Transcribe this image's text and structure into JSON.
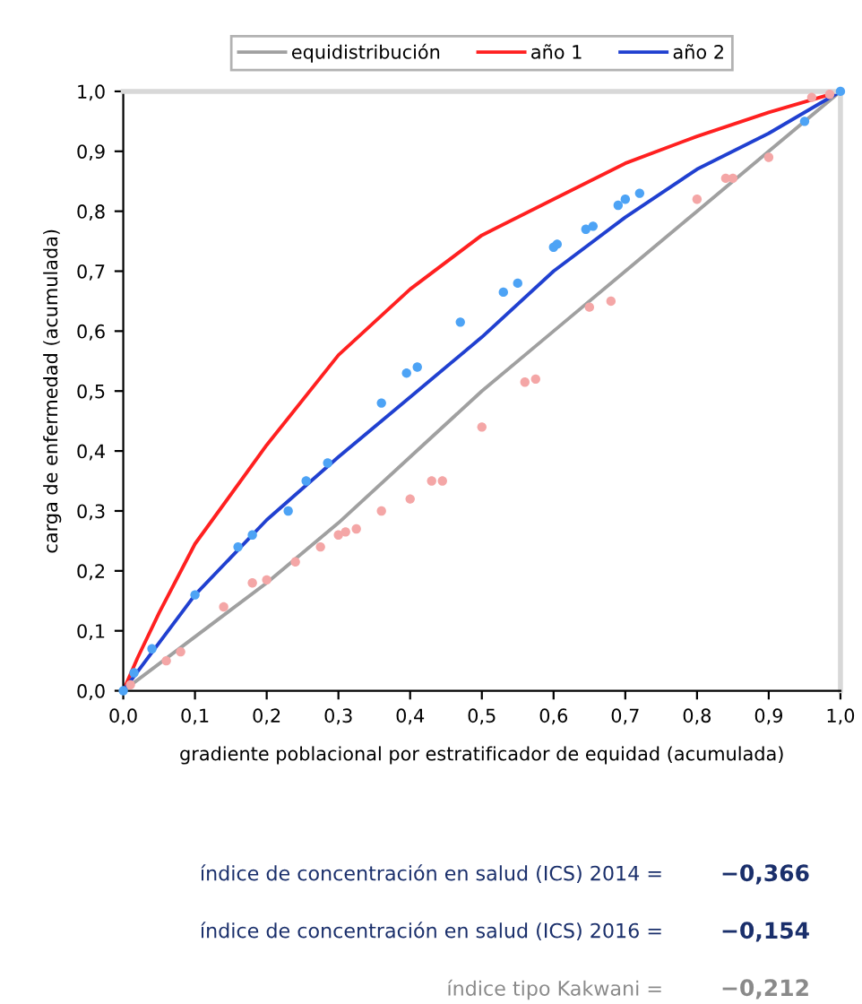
{
  "chart_data": {
    "type": "line",
    "xlabel": "gradiente poblacional por estratificador de equidad (acumulada)",
    "ylabel": "carga de enfermedad (acumulada)",
    "xlim": [
      0,
      1
    ],
    "ylim": [
      0,
      1
    ],
    "xticks": [
      {
        "value": 0,
        "label": "0,0"
      },
      {
        "value": 0.1,
        "label": "0,1"
      },
      {
        "value": 0.2,
        "label": "0,2"
      },
      {
        "value": 0.3,
        "label": "0,3"
      },
      {
        "value": 0.4,
        "label": "0,4"
      },
      {
        "value": 0.5,
        "label": "0,5"
      },
      {
        "value": 0.6,
        "label": "0,6"
      },
      {
        "value": 0.7,
        "label": "0,7"
      },
      {
        "value": 0.8,
        "label": "0,8"
      },
      {
        "value": 0.9,
        "label": "0,9"
      },
      {
        "value": 1,
        "label": "1,0"
      }
    ],
    "yticks": [
      {
        "value": 0,
        "label": "0,0"
      },
      {
        "value": 0.1,
        "label": "0,1"
      },
      {
        "value": 0.2,
        "label": "0,2"
      },
      {
        "value": 0.3,
        "label": "0,3"
      },
      {
        "value": 0.4,
        "label": "0,4"
      },
      {
        "value": 0.5,
        "label": "0,5"
      },
      {
        "value": 0.6,
        "label": "0,6"
      },
      {
        "value": 0.7,
        "label": "0,7"
      },
      {
        "value": 0.8,
        "label": "0,8"
      },
      {
        "value": 0.9,
        "label": "0,9"
      },
      {
        "value": 1,
        "label": "1,0"
      }
    ],
    "grid": false,
    "legend": "top",
    "series": [
      {
        "type": "scatter",
        "color": "#f4a6a6",
        "x": [
          0.01,
          0.06,
          0.08,
          0.14,
          0.18,
          0.2,
          0.24,
          0.275,
          0.3,
          0.31,
          0.325,
          0.36,
          0.4,
          0.43,
          0.445,
          0.5,
          0.56,
          0.575,
          0.65,
          0.68,
          0.8,
          0.84,
          0.85,
          0.9,
          0.96,
          0.985
        ],
        "values": [
          0.01,
          0.05,
          0.065,
          0.14,
          0.18,
          0.185,
          0.215,
          0.24,
          0.26,
          0.265,
          0.27,
          0.3,
          0.32,
          0.35,
          0.35,
          0.44,
          0.515,
          0.52,
          0.64,
          0.65,
          0.82,
          0.855,
          0.855,
          0.89,
          0.99,
          0.995
        ]
      },
      {
        "type": "scatter",
        "color": "#4da3f5",
        "x": [
          0,
          0.015,
          0.04,
          0.1,
          0.16,
          0.18,
          0.23,
          0.255,
          0.285,
          0.36,
          0.395,
          0.41,
          0.47,
          0.53,
          0.55,
          0.6,
          0.605,
          0.645,
          0.655,
          0.69,
          0.7,
          0.72,
          0.95,
          1
        ],
        "values": [
          0,
          0.03,
          0.07,
          0.16,
          0.24,
          0.26,
          0.3,
          0.35,
          0.38,
          0.48,
          0.53,
          0.54,
          0.615,
          0.665,
          0.68,
          0.74,
          0.745,
          0.77,
          0.775,
          0.81,
          0.82,
          0.83,
          0.95,
          1
        ]
      },
      {
        "name": "equidistribución",
        "color": "#a0a0a0",
        "x": [
          0,
          0.1,
          0.2,
          0.3,
          0.4,
          0.5,
          0.6,
          0.7,
          0.8,
          0.9,
          1
        ],
        "values": [
          0,
          0.09,
          0.18,
          0.28,
          0.39,
          0.5,
          0.6,
          0.7,
          0.8,
          0.9,
          1
        ]
      },
      {
        "name": "año 1",
        "color": "#ff2020",
        "x": [
          0,
          0.02,
          0.05,
          0.1,
          0.2,
          0.3,
          0.4,
          0.5,
          0.6,
          0.7,
          0.8,
          0.9,
          1
        ],
        "values": [
          0,
          0.055,
          0.13,
          0.245,
          0.41,
          0.56,
          0.67,
          0.76,
          0.82,
          0.88,
          0.925,
          0.965,
          1
        ]
      },
      {
        "name": "año 2",
        "color": "#2040d0",
        "x": [
          0,
          0.1,
          0.2,
          0.3,
          0.4,
          0.5,
          0.6,
          0.7,
          0.8,
          0.9,
          1
        ],
        "values": [
          0,
          0.16,
          0.285,
          0.39,
          0.49,
          0.59,
          0.7,
          0.79,
          0.87,
          0.93,
          1
        ]
      }
    ],
    "annotations": [
      "índice de concentración en salud (ICS) 2014 =",
      "−0,366",
      "índice de concentración en salud (ICS) 2016 =",
      "−0,154",
      "índice tipo Kakwani =",
      "−0,212"
    ]
  }
}
